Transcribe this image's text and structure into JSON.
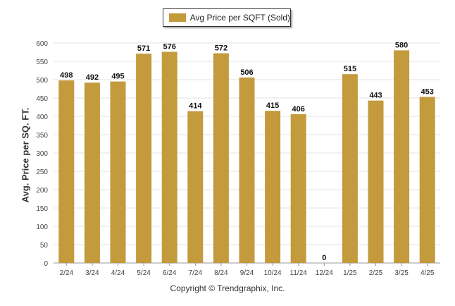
{
  "chart_data": {
    "type": "bar",
    "categories": [
      "2/24",
      "3/24",
      "4/24",
      "5/24",
      "6/24",
      "7/24",
      "8/24",
      "9/24",
      "10/24",
      "11/24",
      "12/24",
      "1/25",
      "2/25",
      "3/25",
      "4/25"
    ],
    "series": [
      {
        "name": "Avg Price per SQFT (Sold)",
        "values": [
          498,
          492,
          495,
          571,
          576,
          414,
          572,
          506,
          415,
          406,
          0,
          515,
          443,
          580,
          453
        ]
      }
    ],
    "ylabel": "Avg. Price per SQ. FT.",
    "xlabel": "",
    "ylim": [
      0,
      600
    ],
    "yticks": [
      0,
      50,
      100,
      150,
      200,
      250,
      300,
      350,
      400,
      450,
      500,
      550,
      600
    ],
    "grid": true,
    "legend": "top-center",
    "data_labels": true,
    "bar_color": "#c39a3c"
  },
  "footer": {
    "copyright": "Copyright © Trendgraphix, Inc."
  }
}
